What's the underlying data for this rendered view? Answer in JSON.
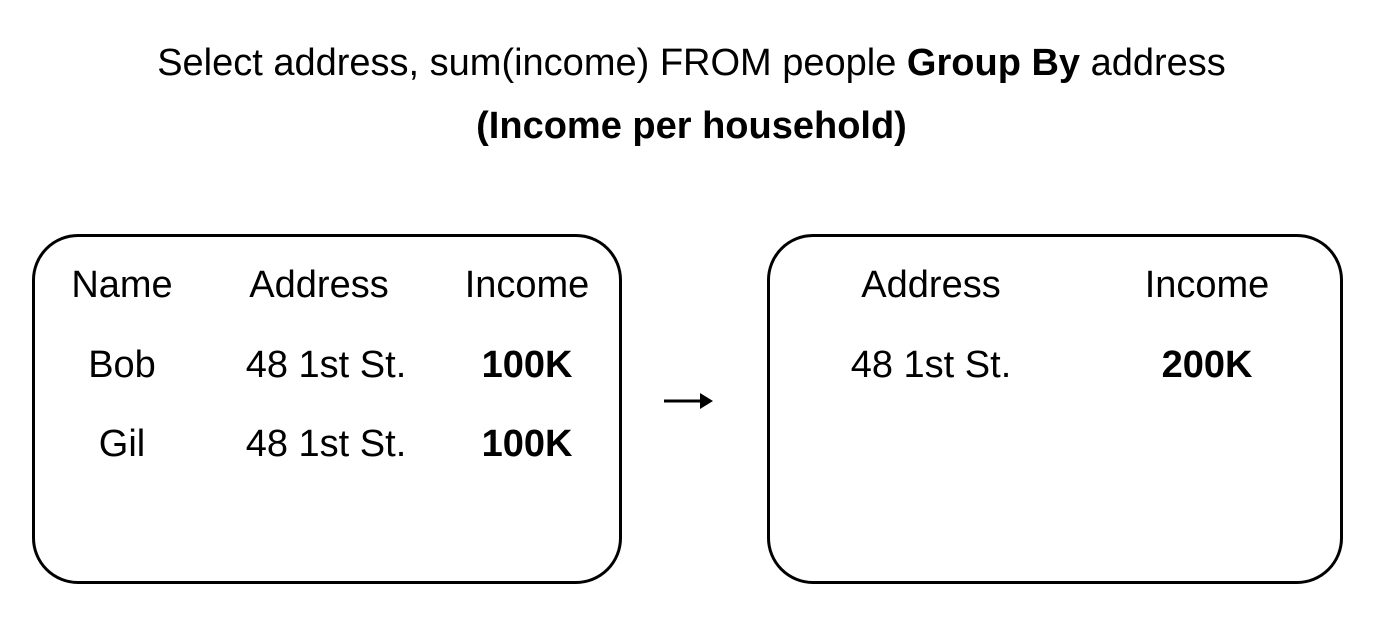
{
  "title": {
    "line1_before": "Select address, sum(income) FROM people ",
    "line1_bold": "Group By",
    "line1_after": " address",
    "line2": "(Income per household)"
  },
  "input_table": {
    "columns": [
      "Name",
      "Address",
      "Income"
    ],
    "rows": [
      [
        "Bob",
        "48 1st St.",
        "100K"
      ],
      [
        "Gil",
        "48 1st St.",
        "100K"
      ]
    ]
  },
  "output_table": {
    "columns": [
      "Address",
      "Income"
    ],
    "rows": [
      [
        "48 1st St.",
        "200K"
      ]
    ]
  },
  "arrow_icon": "right-arrow-icon"
}
